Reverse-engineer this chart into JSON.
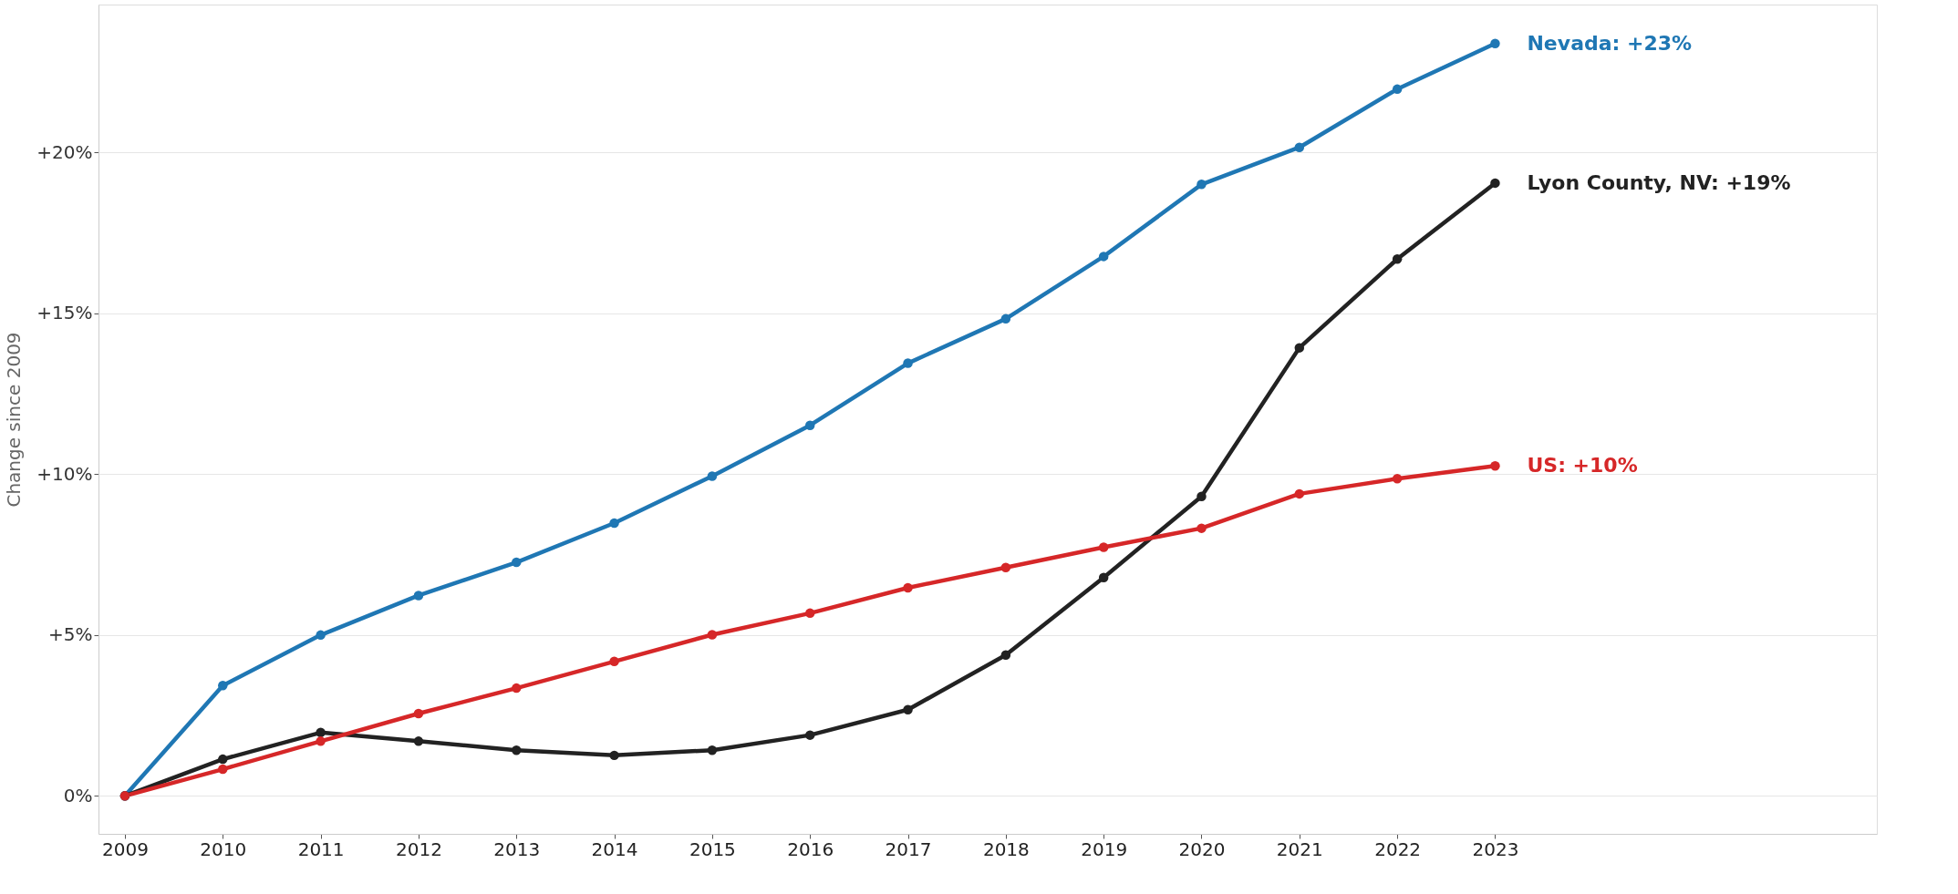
{
  "chart_data": {
    "type": "line",
    "ylabel": "Change since 2009",
    "x": [
      2009,
      2010,
      2011,
      2012,
      2013,
      2014,
      2015,
      2016,
      2017,
      2018,
      2019,
      2020,
      2021,
      2022,
      2023
    ],
    "series": [
      {
        "name": "Nevada: +23%",
        "color": "#1f77b4",
        "values": [
          0,
          3.43,
          5.0,
          6.23,
          7.26,
          8.48,
          9.94,
          11.52,
          13.45,
          14.83,
          16.77,
          19.01,
          20.16,
          21.97,
          23.39
        ]
      },
      {
        "name": "Lyon County, NV: +19%",
        "color": "#222222",
        "values": [
          0,
          1.14,
          1.97,
          1.7,
          1.42,
          1.26,
          1.42,
          1.89,
          2.68,
          4.38,
          6.79,
          9.31,
          13.93,
          16.69,
          19.05
        ]
      },
      {
        "name": "US: +10%",
        "color": "#d62728",
        "values": [
          0,
          0.83,
          1.7,
          2.56,
          3.35,
          4.18,
          5.01,
          5.68,
          6.47,
          7.1,
          7.73,
          8.32,
          9.39,
          9.86,
          10.26
        ]
      }
    ],
    "xlim": [
      2008.73,
      2026.9
    ],
    "xticks": [
      2009,
      2010,
      2011,
      2012,
      2013,
      2014,
      2015,
      2016,
      2017,
      2018,
      2019,
      2020,
      2021,
      2022,
      2023
    ],
    "ylim": [
      -1.18,
      24.6
    ],
    "yticks": [
      {
        "value": 0,
        "label": "0%"
      },
      {
        "value": 5,
        "label": "+5%"
      },
      {
        "value": 10,
        "label": "+10%"
      },
      {
        "value": 15,
        "label": "+15%"
      },
      {
        "value": 20,
        "label": "+20%"
      }
    ],
    "grid": "y",
    "marker": "circle",
    "line_style": "solid"
  }
}
